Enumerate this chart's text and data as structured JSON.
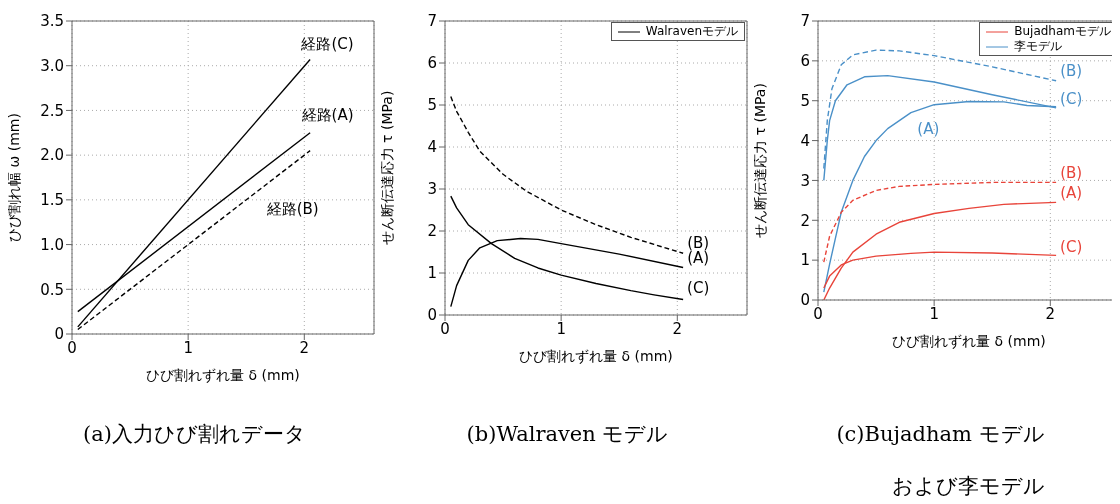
{
  "chart_data": [
    {
      "type": "line",
      "title": "(a)入力ひび割れデータ",
      "xlabel": "ひび割れずれ量 δ (mm)",
      "ylabel": "ひび割れ幅 ω (mm)",
      "xlim": [
        0,
        2.6
      ],
      "xticks": [
        0,
        1,
        2
      ],
      "ylim": [
        0,
        3.5
      ],
      "yticks": [
        0,
        0.5,
        {
          "value": 1,
          "label": "1.0"
        },
        1.5,
        {
          "value": 2,
          "label": "2.0"
        },
        2.5,
        {
          "value": 3,
          "label": "3.0"
        },
        3.5
      ],
      "grid": true,
      "series": [
        {
          "color": "#000000",
          "line_style": "solid",
          "x": [
            0.05,
            2.05
          ],
          "values": [
            0.25,
            2.25
          ]
        },
        {
          "color": "#000000",
          "line_style": "dashed",
          "x": [
            0.05,
            2.05
          ],
          "values": [
            0.05,
            2.05
          ]
        },
        {
          "color": "#000000",
          "line_style": "solid",
          "x": [
            0.05,
            2.05
          ],
          "values": [
            0.08,
            3.07
          ]
        }
      ],
      "annotations": [
        "経路(C)",
        "経路(A)",
        "経路(B)"
      ]
    },
    {
      "type": "line",
      "title": "(b)Walraven モデル",
      "xlabel": "ひび割れずれ量 δ (mm)",
      "ylabel": "せん断伝達応力 τ (MPa)",
      "xlim": [
        0,
        2.6
      ],
      "xticks": [
        0,
        1,
        2
      ],
      "ylim": [
        0,
        7
      ],
      "yticks": [
        0,
        1,
        2,
        3,
        4,
        5,
        6,
        7
      ],
      "grid": true,
      "legend": "top right",
      "series": [
        {
          "name": "Walravenモデル",
          "color": "#000000",
          "line_style": "solid",
          "x": [
            0.05,
            0.1,
            0.2,
            0.3,
            0.45,
            0.65,
            0.8,
            1.0,
            1.5,
            2.05
          ],
          "values": [
            0.2,
            0.7,
            1.3,
            1.6,
            1.77,
            1.82,
            1.8,
            1.7,
            1.45,
            1.13
          ]
        },
        {
          "color": "#000000",
          "line_style": "dashed",
          "x": [
            0.05,
            0.1,
            0.2,
            0.3,
            0.5,
            0.7,
            1.0,
            1.3,
            1.6,
            1.8,
            2.05
          ],
          "values": [
            5.2,
            4.85,
            4.35,
            3.9,
            3.35,
            2.95,
            2.5,
            2.15,
            1.85,
            1.68,
            1.47
          ]
        },
        {
          "color": "#000000",
          "line_style": "solid",
          "x": [
            0.05,
            0.1,
            0.2,
            0.4,
            0.6,
            0.8,
            1.0,
            1.3,
            1.6,
            1.8,
            2.05
          ],
          "values": [
            2.83,
            2.55,
            2.15,
            1.7,
            1.35,
            1.12,
            0.95,
            0.75,
            0.58,
            0.48,
            0.37
          ]
        }
      ],
      "annotations": [
        "(B)",
        "(A)",
        "(C)"
      ]
    },
    {
      "type": "line",
      "title": "(c)Bujadham モデルおよび李モデル",
      "xlabel": "ひび割れずれ量 δ (mm)",
      "ylabel": "せん断伝達応力 τ (MPa)",
      "xlim": [
        0,
        2.6
      ],
      "xticks": [
        0,
        1,
        2
      ],
      "ylim": [
        0,
        7
      ],
      "yticks": [
        0,
        1,
        2,
        3,
        4,
        5,
        6,
        7
      ],
      "grid": true,
      "legend": "top right",
      "series": [
        {
          "name": "Bujadhamモデル",
          "color": "#e8443a",
          "line_style": "solid",
          "x": [
            0.05,
            0.1,
            0.2,
            0.3,
            0.5,
            0.7,
            1.0,
            1.3,
            1.6,
            2.05
          ],
          "values": [
            0.0,
            0.3,
            0.8,
            1.2,
            1.65,
            1.95,
            2.17,
            2.3,
            2.4,
            2.45
          ]
        },
        {
          "name": "李モデル",
          "color": "#4a90c8",
          "line_style": "solid",
          "x": [
            0.05,
            0.1,
            0.2,
            0.3,
            0.4,
            0.5,
            0.6,
            0.8,
            1.0,
            1.3,
            1.6,
            1.8,
            2.05
          ],
          "values": [
            0.2,
            0.9,
            2.2,
            3.0,
            3.6,
            4.0,
            4.3,
            4.7,
            4.9,
            4.98,
            4.97,
            4.88,
            4.85
          ]
        },
        {
          "color": "#e8443a",
          "line_style": "dashed",
          "x": [
            0.05,
            0.1,
            0.2,
            0.3,
            0.5,
            0.7,
            1.0,
            1.5,
            2.05
          ],
          "values": [
            0.95,
            1.6,
            2.2,
            2.5,
            2.75,
            2.85,
            2.9,
            2.95,
            2.95
          ]
        },
        {
          "color": "#e8443a",
          "line_style": "solid",
          "x": [
            0.05,
            0.1,
            0.2,
            0.3,
            0.5,
            0.8,
            1.0,
            1.5,
            2.05
          ],
          "values": [
            0.3,
            0.6,
            0.88,
            1.0,
            1.1,
            1.17,
            1.2,
            1.18,
            1.12
          ]
        },
        {
          "color": "#4a90c8",
          "line_style": "dashed",
          "x": [
            0.05,
            0.08,
            0.12,
            0.2,
            0.3,
            0.5,
            0.7,
            1.0,
            1.5,
            2.05
          ],
          "values": [
            3.3,
            4.5,
            5.3,
            5.9,
            6.15,
            6.27,
            6.25,
            6.13,
            5.85,
            5.5
          ]
        },
        {
          "color": "#4a90c8",
          "line_style": "solid",
          "x": [
            0.05,
            0.08,
            0.1,
            0.15,
            0.25,
            0.4,
            0.6,
            1.0,
            1.5,
            2.05
          ],
          "values": [
            3.0,
            4.0,
            4.5,
            5.0,
            5.4,
            5.6,
            5.63,
            5.47,
            5.15,
            4.82
          ]
        }
      ],
      "annotations": [
        "(B)",
        "(C)",
        "(A)",
        "(B)",
        "(A)",
        "(C)"
      ]
    }
  ]
}
